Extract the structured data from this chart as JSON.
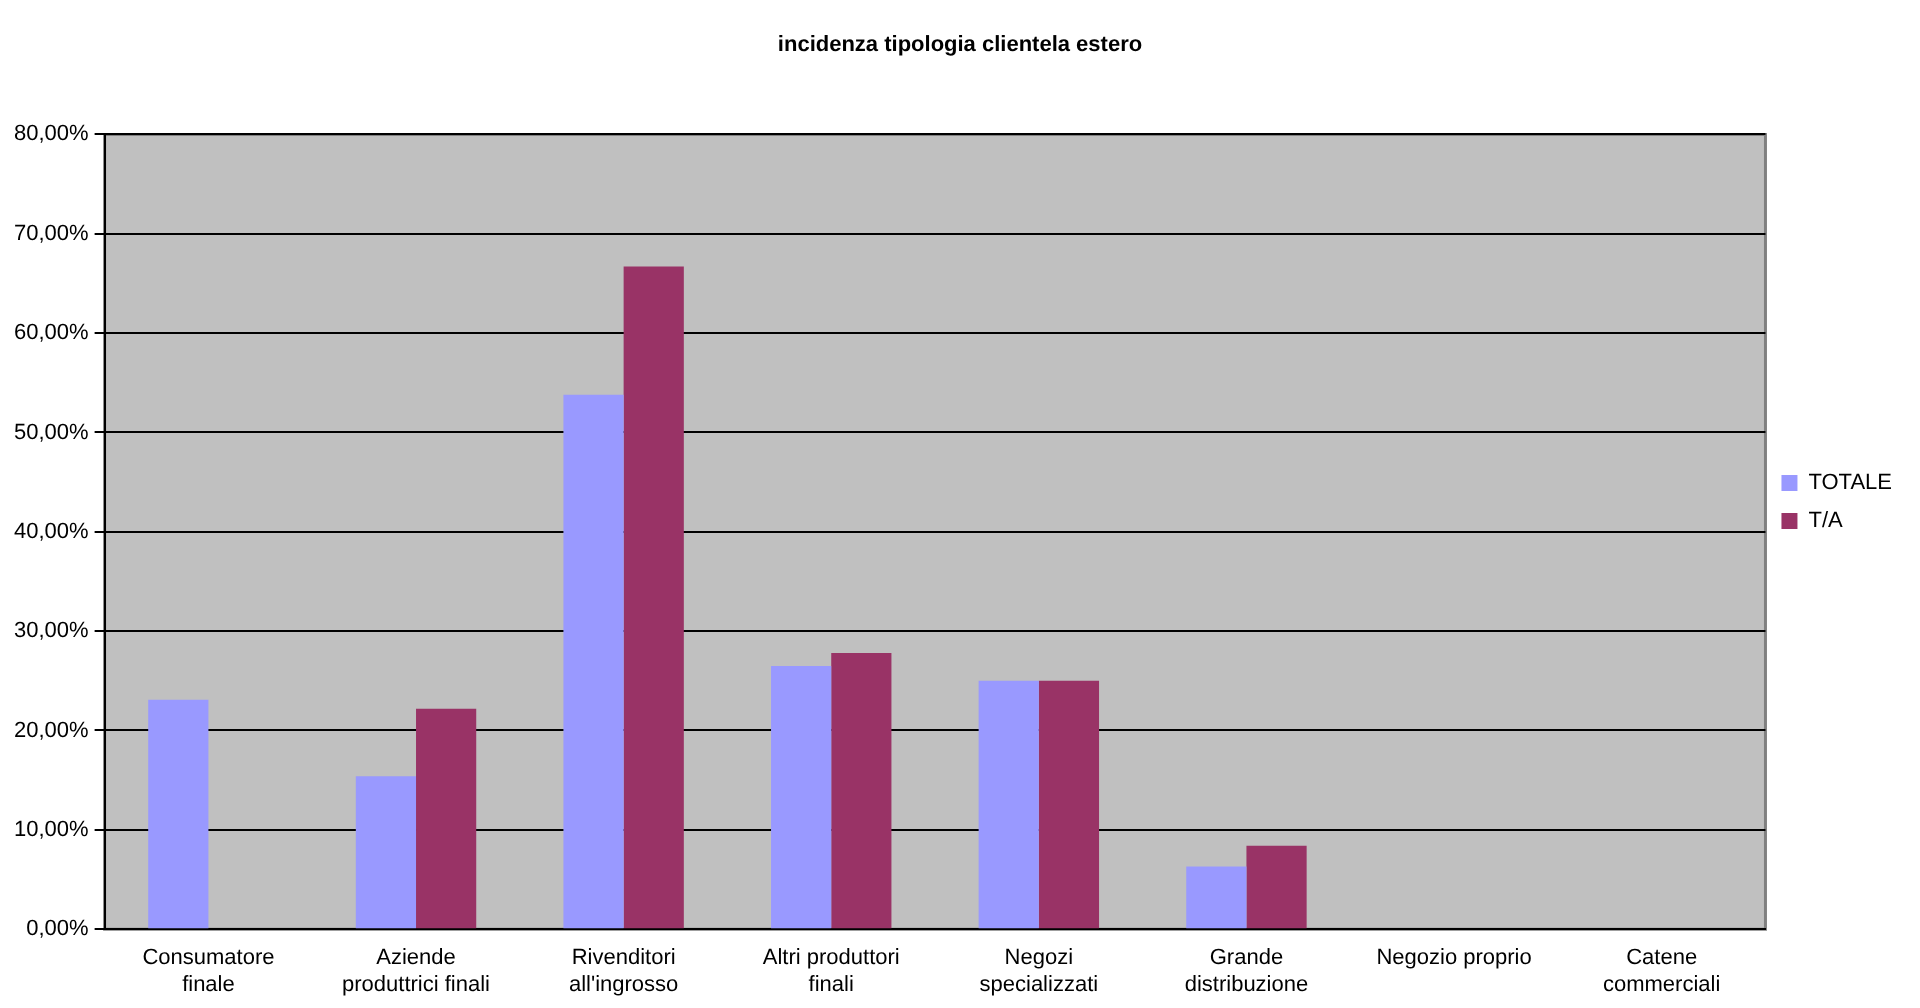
{
  "chart_data": {
    "type": "bar",
    "title": "incidenza tipologia clientela estero",
    "categories": [
      "Consumatore finale",
      "Aziende produttrici finali",
      "Rivenditori all'ingrosso",
      "Altri produttori finali",
      "Negozi specializzati",
      "Grande distribuzione",
      "Negozio proprio",
      "Catene commerciali"
    ],
    "series": [
      {
        "name": "TOTALE",
        "color": "#9999ff",
        "values": [
          23.1,
          15.4,
          53.8,
          26.5,
          25.0,
          6.3,
          0,
          0
        ]
      },
      {
        "name": "T/A",
        "color": "#993366",
        "values": [
          0,
          22.2,
          66.7,
          27.8,
          25.0,
          8.4,
          0,
          0
        ]
      }
    ],
    "ylim": [
      0,
      80
    ],
    "yticks": [
      {
        "value": 0,
        "label": "0,00%"
      },
      {
        "value": 10,
        "label": "10,00%"
      },
      {
        "value": 20,
        "label": "20,00%"
      },
      {
        "value": 30,
        "label": "30,00%"
      },
      {
        "value": 40,
        "label": "40,00%"
      },
      {
        "value": 50,
        "label": "50,00%"
      },
      {
        "value": 60,
        "label": "60,00%"
      },
      {
        "value": 70,
        "label": "70,00%"
      },
      {
        "value": 80,
        "label": "80,00%"
      }
    ],
    "grid": "y",
    "legend": "right"
  }
}
